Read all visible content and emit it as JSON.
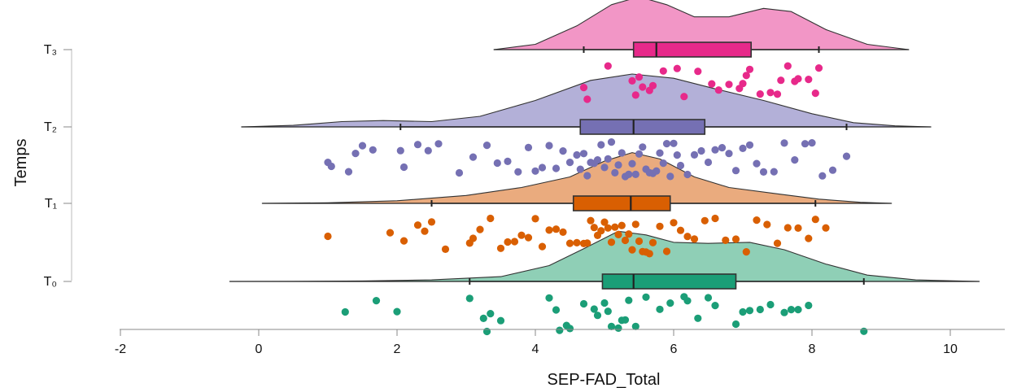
{
  "chart_data": {
    "type": "raincloud",
    "orientation": "horizontal",
    "xlabel": "SEP-FAD_Total",
    "ylabel": "Temps",
    "xlim": [
      -2,
      10.8
    ],
    "xticks": [
      -2,
      0,
      2,
      4,
      6,
      8,
      10
    ],
    "grid": false,
    "legend": "none",
    "groups": [
      {
        "label": "T₀",
        "color": "#1b9e77",
        "light": "#8fcfb6",
        "box": {
          "whisker_low": 3.05,
          "q1": 4.97,
          "median": 5.42,
          "q3": 6.9,
          "whisker_high": 8.75
        },
        "density_range": [
          -0.42,
          10.42
        ],
        "density": [
          [
            -0.42,
            0
          ],
          [
            0.5,
            0.002
          ],
          [
            1.5,
            0.01
          ],
          [
            2.5,
            0.03
          ],
          [
            3.5,
            0.09
          ],
          [
            4.2,
            0.3
          ],
          [
            4.7,
            0.62
          ],
          [
            5.2,
            0.95
          ],
          [
            5.6,
            0.88
          ],
          [
            6.0,
            0.74
          ],
          [
            6.5,
            0.72
          ],
          [
            7.1,
            0.74
          ],
          [
            7.6,
            0.6
          ],
          [
            8.2,
            0.33
          ],
          [
            8.8,
            0.12
          ],
          [
            9.5,
            0.03
          ],
          [
            10.42,
            0
          ]
        ],
        "points": [
          1.25,
          1.7,
          2.0,
          3.05,
          3.25,
          3.3,
          3.35,
          3.5,
          4.2,
          4.3,
          4.35,
          4.45,
          4.5,
          4.7,
          4.85,
          4.9,
          5.0,
          5.05,
          5.1,
          5.2,
          5.25,
          5.3,
          5.35,
          5.45,
          5.6,
          5.8,
          5.95,
          6.15,
          6.2,
          6.35,
          6.5,
          6.6,
          6.9,
          7.0,
          7.1,
          7.25,
          7.4,
          7.6,
          7.7,
          7.8,
          7.95,
          8.75
        ]
      },
      {
        "label": "T₁",
        "color": "#d95f02",
        "light": "#eaab7e",
        "box": {
          "whisker_low": 2.5,
          "q1": 4.55,
          "median": 5.38,
          "q3": 5.95,
          "whisker_high": 8.05
        },
        "density_range": [
          0.05,
          9.15
        ],
        "density": [
          [
            0.05,
            0
          ],
          [
            1.0,
            0.01
          ],
          [
            2.0,
            0.05
          ],
          [
            3.0,
            0.15
          ],
          [
            3.8,
            0.3
          ],
          [
            4.5,
            0.5
          ],
          [
            5.0,
            0.8
          ],
          [
            5.4,
            0.96
          ],
          [
            5.8,
            0.84
          ],
          [
            6.3,
            0.5
          ],
          [
            6.8,
            0.3
          ],
          [
            7.5,
            0.18
          ],
          [
            8.1,
            0.08
          ],
          [
            8.7,
            0.02
          ],
          [
            9.15,
            0
          ]
        ],
        "points": [
          1.0,
          1.9,
          2.1,
          2.3,
          2.4,
          2.5,
          2.7,
          3.05,
          3.1,
          3.2,
          3.35,
          3.5,
          3.6,
          3.7,
          3.8,
          3.9,
          4.0,
          4.1,
          4.2,
          4.3,
          4.4,
          4.5,
          4.6,
          4.7,
          4.75,
          4.8,
          4.85,
          4.9,
          4.95,
          5.0,
          5.05,
          5.1,
          5.15,
          5.2,
          5.25,
          5.3,
          5.35,
          5.4,
          5.45,
          5.5,
          5.55,
          5.6,
          5.65,
          5.7,
          5.8,
          5.9,
          6.0,
          6.1,
          6.2,
          6.3,
          6.45,
          6.6,
          6.75,
          6.9,
          7.05,
          7.2,
          7.35,
          7.5,
          7.65,
          7.8,
          7.95,
          8.05,
          8.2
        ]
      },
      {
        "label": "T₂",
        "color": "#7570b3",
        "light": "#b3b0d8",
        "box": {
          "whisker_low": 2.05,
          "q1": 4.65,
          "median": 5.42,
          "q3": 6.45,
          "whisker_high": 8.5
        },
        "density_range": [
          -0.25,
          9.72
        ],
        "density": [
          [
            -0.25,
            0
          ],
          [
            0.5,
            0.03
          ],
          [
            1.2,
            0.1
          ],
          [
            1.8,
            0.12
          ],
          [
            2.5,
            0.1
          ],
          [
            3.2,
            0.2
          ],
          [
            4.0,
            0.5
          ],
          [
            4.8,
            0.88
          ],
          [
            5.4,
            1.0
          ],
          [
            6.0,
            0.92
          ],
          [
            6.6,
            0.72
          ],
          [
            7.3,
            0.5
          ],
          [
            8.0,
            0.25
          ],
          [
            8.6,
            0.08
          ],
          [
            9.2,
            0.02
          ],
          [
            9.72,
            0
          ]
        ],
        "points": [
          1.0,
          1.05,
          1.3,
          1.4,
          1.5,
          1.65,
          2.05,
          2.1,
          2.3,
          2.45,
          2.6,
          2.9,
          3.1,
          3.3,
          3.45,
          3.6,
          3.75,
          3.9,
          4.0,
          4.1,
          4.2,
          4.3,
          4.4,
          4.5,
          4.6,
          4.65,
          4.7,
          4.75,
          4.8,
          4.85,
          4.9,
          4.95,
          5.0,
          5.05,
          5.1,
          5.15,
          5.2,
          5.25,
          5.3,
          5.35,
          5.4,
          5.45,
          5.5,
          5.55,
          5.6,
          5.65,
          5.7,
          5.75,
          5.8,
          5.85,
          5.9,
          5.95,
          6.0,
          6.05,
          6.1,
          6.2,
          6.3,
          6.4,
          6.5,
          6.6,
          6.7,
          6.8,
          6.9,
          7.0,
          7.1,
          7.2,
          7.3,
          7.45,
          7.6,
          7.75,
          7.9,
          8.0,
          8.15,
          8.3,
          8.5
        ]
      },
      {
        "label": "T₃",
        "color": "#e7298a",
        "light": "#f296c6",
        "box": {
          "whisker_low": 4.7,
          "q1": 5.42,
          "median": 5.75,
          "q3": 7.12,
          "whisker_high": 8.1
        },
        "density_range": [
          3.4,
          9.4
        ],
        "density": [
          [
            3.4,
            0
          ],
          [
            4.0,
            0.1
          ],
          [
            4.6,
            0.45
          ],
          [
            5.1,
            0.85
          ],
          [
            5.5,
            1.0
          ],
          [
            5.9,
            0.85
          ],
          [
            6.3,
            0.62
          ],
          [
            6.8,
            0.62
          ],
          [
            7.3,
            0.78
          ],
          [
            7.7,
            0.72
          ],
          [
            8.2,
            0.38
          ],
          [
            8.8,
            0.1
          ],
          [
            9.4,
            0
          ]
        ],
        "points": [
          4.7,
          4.75,
          5.05,
          5.4,
          5.45,
          5.5,
          5.55,
          5.65,
          5.7,
          5.85,
          6.05,
          6.15,
          6.35,
          6.55,
          6.65,
          6.8,
          6.95,
          7.0,
          7.05,
          7.1,
          7.25,
          7.4,
          7.5,
          7.55,
          7.65,
          7.75,
          7.8,
          7.95,
          8.05,
          8.1
        ]
      }
    ]
  }
}
